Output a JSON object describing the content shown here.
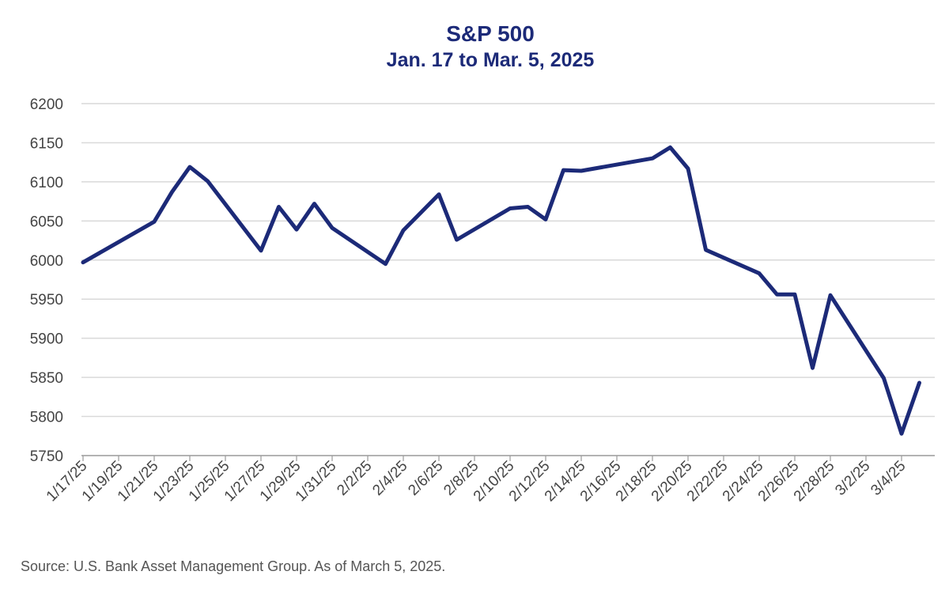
{
  "chart_data": {
    "type": "line",
    "title": "S&P 500",
    "subtitle": "Jan. 17 to Mar. 5, 2025",
    "xlabel": "",
    "ylabel": "",
    "ylim": [
      5750,
      6200
    ],
    "yticks": [
      5750,
      5800,
      5850,
      5900,
      5950,
      6000,
      6050,
      6100,
      6150,
      6200
    ],
    "x_tick_labels": [
      "1/17/25",
      "1/19/25",
      "1/21/25",
      "1/23/25",
      "1/25/25",
      "1/27/25",
      "1/29/25",
      "1/31/25",
      "2/2/25",
      "2/4/25",
      "2/6/25",
      "2/8/25",
      "2/10/25",
      "2/12/25",
      "2/14/25",
      "2/16/25",
      "2/18/25",
      "2/20/25",
      "2/22/25",
      "2/24/25",
      "2/26/25",
      "2/28/25",
      "3/2/25",
      "3/4/25"
    ],
    "grid": true,
    "line_color": "#1c2a78",
    "series": [
      {
        "x": [
          "1/17/25",
          "1/21/25",
          "1/22/25",
          "1/23/25",
          "1/24/25",
          "1/27/25",
          "1/28/25",
          "1/29/25",
          "1/30/25",
          "1/31/25",
          "2/3/25",
          "2/4/25",
          "2/5/25",
          "2/6/25",
          "2/7/25",
          "2/10/25",
          "2/11/25",
          "2/12/25",
          "2/13/25",
          "2/14/25",
          "2/18/25",
          "2/19/25",
          "2/20/25",
          "2/21/25",
          "2/24/25",
          "2/25/25",
          "2/26/25",
          "2/27/25",
          "2/28/25",
          "3/3/25",
          "3/4/25",
          "3/5/25"
        ],
        "values": [
          5997,
          6049,
          6087,
          6119,
          6101,
          6012,
          6068,
          6039,
          6072,
          6041,
          5995,
          6038,
          6061,
          6084,
          6026,
          6066,
          6068,
          6052,
          6115,
          6114,
          6130,
          6144,
          6117,
          6013,
          5983,
          5956,
          5956,
          5862,
          5955,
          5849,
          5778,
          5843
        ]
      }
    ]
  },
  "source": "Source: U.S. Bank Asset Management Group. As of March 5, 2025."
}
